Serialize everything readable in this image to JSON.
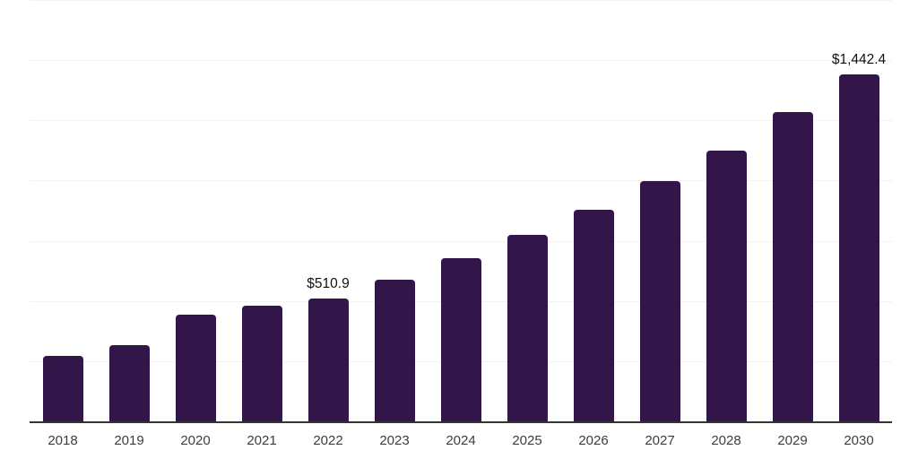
{
  "chart_data": {
    "type": "bar",
    "title": "",
    "xlabel": "",
    "ylabel": "",
    "categories": [
      "2018",
      "2019",
      "2020",
      "2021",
      "2022",
      "2023",
      "2024",
      "2025",
      "2026",
      "2027",
      "2028",
      "2029",
      "2030"
    ],
    "values": [
      272,
      317,
      443,
      480,
      510.9,
      588,
      678,
      775,
      879,
      998,
      1125,
      1285,
      1442.4
    ],
    "bar_labels": [
      "",
      "",
      "",
      "",
      "$510.9",
      "",
      "",
      "",
      "",
      "",
      "",
      "",
      "$1,442.4"
    ],
    "ylim": [
      0,
      1750
    ],
    "grid_step": 250,
    "grid": true,
    "y_axis_labels_visible": false,
    "legend": false,
    "colors": {
      "bar": "#321649",
      "grid": "#f2f2f2",
      "axis": "#333333",
      "tick_label": "#3d3d3d",
      "value_label": "#111111",
      "background": "#ffffff"
    }
  }
}
